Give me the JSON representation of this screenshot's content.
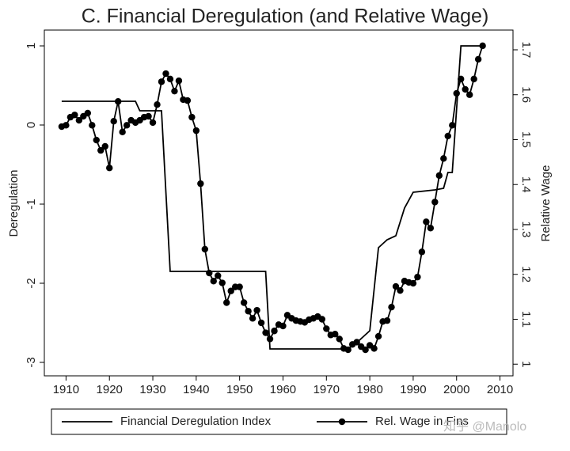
{
  "chart_data": {
    "type": "line",
    "title": "C. Financial Deregulation (and Relative Wage)",
    "ylabel": "Deregulation",
    "y2label": "Relative Wage",
    "xlim": [
      1905,
      2013
    ],
    "xticks": [
      1910,
      1920,
      1930,
      1940,
      1950,
      1960,
      1970,
      1980,
      1990,
      2000,
      2010
    ],
    "ylim": [
      -3.17,
      1.2
    ],
    "yticks": [
      -3,
      -2,
      -1,
      0,
      1
    ],
    "y2lim": [
      0.974,
      1.744
    ],
    "y2ticks": [
      1,
      1.1,
      1.2,
      1.3,
      1.4,
      1.5,
      1.6,
      1.7
    ],
    "watermark": "知乎 @Manolo",
    "series": [
      {
        "name": "Financial Deregulation Index",
        "color": "#000000",
        "marker": false,
        "x": [
          1909,
          1926,
          1927,
          1932,
          1934,
          1956,
          1957,
          1975,
          1977,
          1980,
          1982,
          1984,
          1986,
          1988,
          1990,
          1995,
          1997,
          1998,
          1999,
          2001,
          2006
        ],
        "values": [
          0.3,
          0.3,
          0.18,
          0.18,
          -1.85,
          -1.85,
          -2.83,
          -2.83,
          -2.75,
          -2.6,
          -1.55,
          -1.45,
          -1.4,
          -1.05,
          -0.85,
          -0.82,
          -0.8,
          -0.6,
          -0.6,
          1.0,
          1.0
        ]
      },
      {
        "name": "Rel. Wage in Fins",
        "color": "#000000",
        "marker": true,
        "axis": "y2",
        "x": [
          1909,
          1910,
          1911,
          1912,
          1913,
          1914,
          1915,
          1916,
          1917,
          1918,
          1919,
          1920,
          1921,
          1922,
          1923,
          1924,
          1925,
          1926,
          1927,
          1928,
          1929,
          1930,
          1931,
          1932,
          1933,
          1934,
          1935,
          1936,
          1937,
          1938,
          1939,
          1940,
          1941,
          1942,
          1943,
          1944,
          1945,
          1946,
          1947,
          1948,
          1949,
          1950,
          1951,
          1952,
          1953,
          1954,
          1955,
          1956,
          1957,
          1958,
          1959,
          1960,
          1961,
          1962,
          1963,
          1964,
          1965,
          1966,
          1967,
          1968,
          1969,
          1970,
          1971,
          1972,
          1973,
          1974,
          1975,
          1976,
          1977,
          1978,
          1979,
          1980,
          1981,
          1982,
          1983,
          1984,
          1985,
          1986,
          1987,
          1988,
          1989,
          1990,
          1991,
          1992,
          1993,
          1994,
          1995,
          1996,
          1997,
          1998,
          1999,
          2000,
          2001,
          2002,
          2003,
          2004,
          2005,
          2006
        ],
        "values": [
          1.529,
          1.532,
          1.55,
          1.555,
          1.543,
          1.552,
          1.559,
          1.532,
          1.499,
          1.476,
          1.485,
          1.437,
          1.541,
          1.585,
          1.517,
          1.532,
          1.543,
          1.538,
          1.543,
          1.55,
          1.552,
          1.538,
          1.578,
          1.629,
          1.647,
          1.635,
          1.608,
          1.631,
          1.589,
          1.587,
          1.55,
          1.52,
          1.402,
          1.256,
          1.203,
          1.185,
          1.197,
          1.181,
          1.137,
          1.163,
          1.172,
          1.172,
          1.137,
          1.118,
          1.102,
          1.12,
          1.092,
          1.07,
          1.056,
          1.074,
          1.088,
          1.085,
          1.109,
          1.102,
          1.097,
          1.095,
          1.093,
          1.099,
          1.102,
          1.106,
          1.1,
          1.079,
          1.065,
          1.067,
          1.056,
          1.035,
          1.032,
          1.044,
          1.049,
          1.039,
          1.032,
          1.042,
          1.035,
          1.062,
          1.095,
          1.097,
          1.127,
          1.173,
          1.164,
          1.185,
          1.182,
          1.18,
          1.194,
          1.25,
          1.317,
          1.303,
          1.361,
          1.42,
          1.458,
          1.508,
          1.532,
          1.603,
          1.635,
          1.612,
          1.6,
          1.635,
          1.679,
          1.709
        ]
      }
    ]
  }
}
